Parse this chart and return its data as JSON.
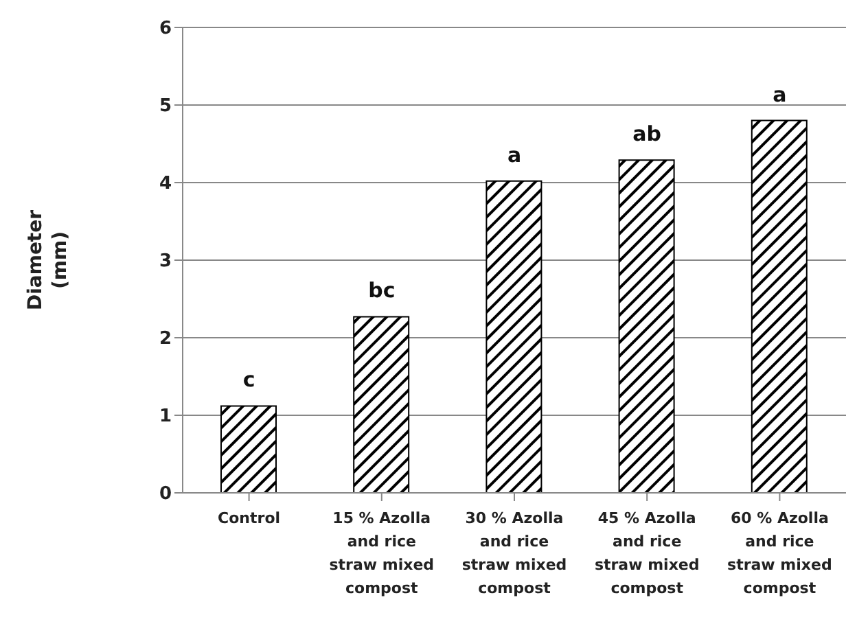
{
  "chart_data": {
    "type": "bar",
    "ylabel": "Diameter\n(mm)",
    "categories": [
      "Control",
      "15 % Azolla and rice straw mixed compost",
      "30 % Azolla and rice straw mixed compost",
      "45 % Azolla and rice straw mixed compost",
      "60 % Azolla and rice straw mixed compost"
    ],
    "values": [
      1.12,
      2.27,
      4.02,
      4.29,
      4.8
    ],
    "color": "#000000",
    "ylim": [
      0,
      6
    ],
    "yticks": [
      0,
      1,
      2,
      3,
      4,
      5,
      6
    ],
    "grid": "y",
    "annotations": [
      {
        "text": "c",
        "x": "Control",
        "y": 1.12
      },
      {
        "text": "bc",
        "x": "15 % Azolla and rice straw mixed compost",
        "y": 2.27
      },
      {
        "text": "a",
        "x": "30 % Azolla and rice straw mixed compost",
        "y": 4.02
      },
      {
        "text": "ab",
        "x": "45 % Azolla and rice straw mixed compost",
        "y": 4.29
      },
      {
        "text": "a",
        "x": "60 % Azolla and rice straw mixed compost",
        "y": 4.8
      }
    ]
  }
}
